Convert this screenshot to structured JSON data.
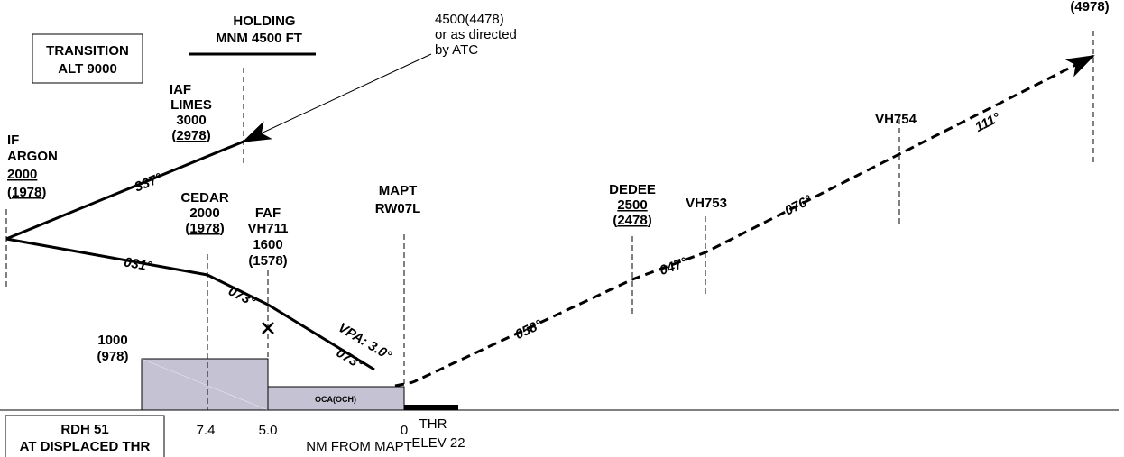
{
  "transition": {
    "line1": "TRANSITION",
    "line2": "ALT 9000"
  },
  "holding": {
    "line1": "HOLDING",
    "line2": "MNM 4500 FT"
  },
  "atc_note": {
    "line1": "4500(4478)",
    "line2": "or as directed",
    "line3": "by ATC"
  },
  "top_right_alt": "(4978)",
  "iaf": {
    "role": "IAF",
    "name": "LIMES",
    "alt": "3000",
    "height": "2978"
  },
  "if_fix": {
    "role": "IF",
    "name": "ARGON",
    "alt": "2000",
    "height": "1978"
  },
  "cedar": {
    "name": "CEDAR",
    "alt": "2000",
    "height": "1978"
  },
  "faf": {
    "role": "FAF",
    "name": "VH711",
    "alt": "1600",
    "height": "(1578)"
  },
  "mapt": {
    "role": "MAPT",
    "name": "RW07L"
  },
  "dedee": {
    "name": "DEDEE",
    "alt": "2500",
    "height": "2478"
  },
  "vh753": "VH753",
  "vh754": "VH754",
  "courses": {
    "c337": "337°",
    "c031": "031°",
    "c073a": "073°",
    "c073b": "073°",
    "c058": "058°",
    "c047": "047°",
    "c076": "076°",
    "c111": "111°"
  },
  "vpa": "VPA: 3.0°",
  "step_alt": {
    "line1": "1000",
    "line2": "(978)"
  },
  "oca_label": "OCA(OCH)",
  "rdh": {
    "line1": "RDH 51",
    "line2": "AT DISPLACED THR"
  },
  "distances": {
    "d74": "7.4",
    "d50": "5.0",
    "d0": "0",
    "unit": "NM FROM MAPT"
  },
  "threshold": {
    "line1": "THR",
    "line2": "ELEV 22"
  },
  "colors": {
    "shade": "#c5c3d3",
    "ink": "#000000"
  }
}
